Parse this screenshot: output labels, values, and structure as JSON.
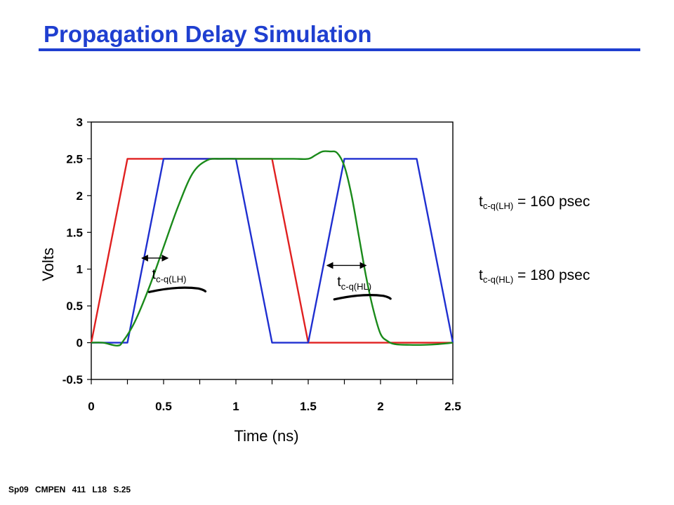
{
  "slide": {
    "title": "Propagation Delay Simulation",
    "footer": "Sp09 CMPEN 411 L18 S.25",
    "results": [
      {
        "sym": "t",
        "sub": "c-q(LH)",
        "rest": " = 160 psec"
      },
      {
        "sym": "t",
        "sub": "c-q(HL)",
        "rest": " = 180 psec"
      }
    ]
  },
  "chart_data": {
    "type": "line",
    "title": "",
    "xlabel": "Time (ns)",
    "ylabel": "Volts",
    "xlim": [
      0,
      2.5
    ],
    "ylim": [
      -0.5,
      3
    ],
    "x_ticks": [
      "0",
      "0.5",
      "1",
      "1.5",
      "2",
      "2.5"
    ],
    "y_ticks": [
      "3",
      "2.5",
      "2",
      "1.5",
      "1",
      "0.5",
      "0",
      "-0.5"
    ],
    "grid": false,
    "legend": "none",
    "series": [
      {
        "color": "#e02020",
        "x": [
          0,
          0.25,
          1.25,
          1.5,
          2.5
        ],
        "y": [
          0,
          2.5,
          2.5,
          0,
          0
        ]
      },
      {
        "color": "#1f2fd0",
        "x": [
          0,
          0.25,
          0.5,
          1.0,
          1.25,
          1.5,
          1.75,
          2.25,
          2.5
        ],
        "y": [
          0,
          0,
          2.5,
          2.5,
          0,
          0,
          2.5,
          2.5,
          0
        ]
      },
      {
        "color": "#1a8a1a",
        "x": [
          0,
          0.08,
          0.18,
          0.22,
          0.3,
          0.4,
          0.5,
          0.6,
          0.7,
          0.8,
          0.9,
          1.0,
          1.1,
          1.2,
          1.3,
          1.4,
          1.5,
          1.55,
          1.6,
          1.65,
          1.7,
          1.75,
          1.8,
          1.85,
          1.9,
          1.95,
          2.0,
          2.05,
          2.1,
          2.2,
          2.3,
          2.4,
          2.5
        ],
        "y": [
          0,
          0,
          -0.04,
          0.02,
          0.28,
          0.75,
          1.3,
          1.85,
          2.3,
          2.48,
          2.5,
          2.5,
          2.5,
          2.5,
          2.5,
          2.5,
          2.5,
          2.55,
          2.6,
          2.6,
          2.58,
          2.4,
          2.0,
          1.45,
          0.9,
          0.45,
          0.12,
          0.02,
          -0.02,
          -0.03,
          -0.03,
          -0.02,
          0
        ]
      }
    ],
    "annotations": [
      {
        "sym": "t",
        "sub": "c-q(LH)",
        "arrow_x": [
          0.35,
          0.53
        ],
        "arrow_y": 1.15,
        "label_x": 0.42,
        "label_y": 0.87
      },
      {
        "sym": "t",
        "sub": "c-q(HL)",
        "arrow_x": [
          1.63,
          1.9
        ],
        "arrow_y": 1.05,
        "label_x": 1.7,
        "label_y": 0.77
      }
    ]
  }
}
